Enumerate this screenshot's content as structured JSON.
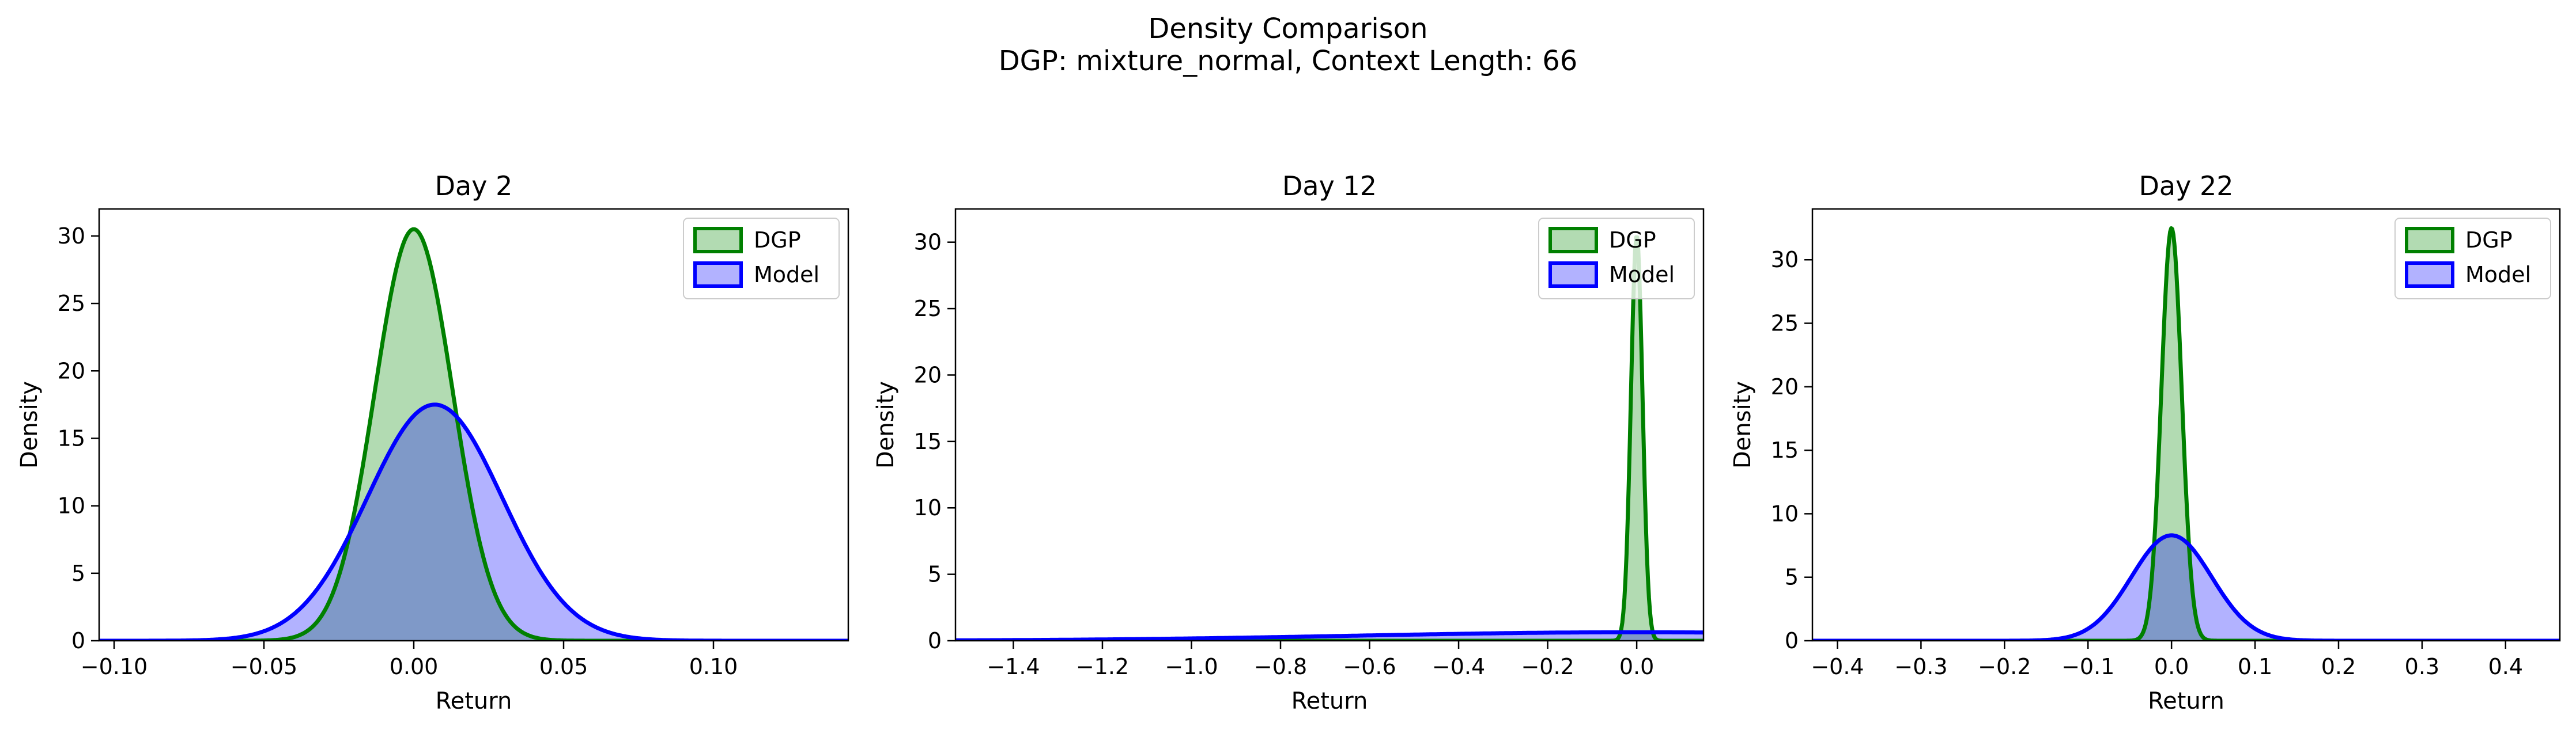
{
  "figure": {
    "title_line1": "Density Comparison",
    "title_line2": "DGP: mixture_normal, Context Length: 66"
  },
  "colors": {
    "dgp_line": "#008000",
    "dgp_fill": "#b2dbb2",
    "model_line": "#0000ff",
    "model_fill": "#b2b2ff",
    "overlap_fill": "#7f99c8"
  },
  "chart_data": [
    {
      "type": "area",
      "title": "Day 2",
      "xlabel": "Return",
      "ylabel": "Density",
      "xlim": [
        -0.105,
        0.145
      ],
      "ylim": [
        0,
        32
      ],
      "xticks": [
        -0.1,
        -0.05,
        0.0,
        0.05,
        0.1
      ],
      "xtick_labels": [
        "−0.10",
        "−0.05",
        "0.00",
        "0.05",
        "0.10"
      ],
      "yticks": [
        0,
        5,
        10,
        15,
        20,
        25,
        30
      ],
      "legend": {
        "position": "upper-right",
        "entries": [
          "DGP",
          "Model"
        ]
      },
      "series": [
        {
          "name": "DGP",
          "dist": "normal",
          "mean": 0.0,
          "sd": 0.013,
          "peak": 30.5
        },
        {
          "name": "Model",
          "dist": "normal",
          "mean": 0.007,
          "sd": 0.0225,
          "peak": 17.5
        }
      ]
    },
    {
      "type": "area",
      "title": "Day 12",
      "xlabel": "Return",
      "ylabel": "Density",
      "xlim": [
        -1.53,
        0.15
      ],
      "ylim": [
        0,
        32.5
      ],
      "xticks": [
        -1.4,
        -1.2,
        -1.0,
        -0.8,
        -0.6,
        -0.4,
        -0.2,
        0.0
      ],
      "xtick_labels": [
        "−1.4",
        "−1.2",
        "−1.0",
        "−0.8",
        "−0.6",
        "−0.4",
        "−0.2",
        "0.0"
      ],
      "yticks": [
        0,
        5,
        10,
        15,
        20,
        25,
        30
      ],
      "legend": {
        "position": "upper-right",
        "entries": [
          "DGP",
          "Model"
        ]
      },
      "series": [
        {
          "name": "DGP",
          "dist": "normal",
          "mean": 0.0,
          "sd": 0.013,
          "peak": 30.5
        },
        {
          "name": "Model",
          "dist": "normal",
          "mean": 0.0,
          "sd": 0.62,
          "peak": 0.64
        }
      ]
    },
    {
      "type": "area",
      "title": "Day 22",
      "xlabel": "Return",
      "ylabel": "Density",
      "xlim": [
        -0.43,
        0.465
      ],
      "ylim": [
        0,
        34
      ],
      "xticks": [
        -0.4,
        -0.3,
        -0.2,
        -0.1,
        0.0,
        0.1,
        0.2,
        0.3,
        0.4
      ],
      "xtick_labels": [
        "−0.4",
        "−0.3",
        "−0.2",
        "−0.1",
        "0.0",
        "0.1",
        "0.2",
        "0.3",
        "0.4"
      ],
      "yticks": [
        0,
        5,
        10,
        15,
        20,
        25,
        30
      ],
      "legend": {
        "position": "upper-right",
        "entries": [
          "DGP",
          "Model"
        ]
      },
      "series": [
        {
          "name": "DGP",
          "dist": "normal",
          "mean": 0.0,
          "sd": 0.0122,
          "peak": 32.5
        },
        {
          "name": "Model",
          "dist": "normal",
          "mean": 0.0,
          "sd": 0.048,
          "peak": 8.3
        }
      ]
    }
  ]
}
